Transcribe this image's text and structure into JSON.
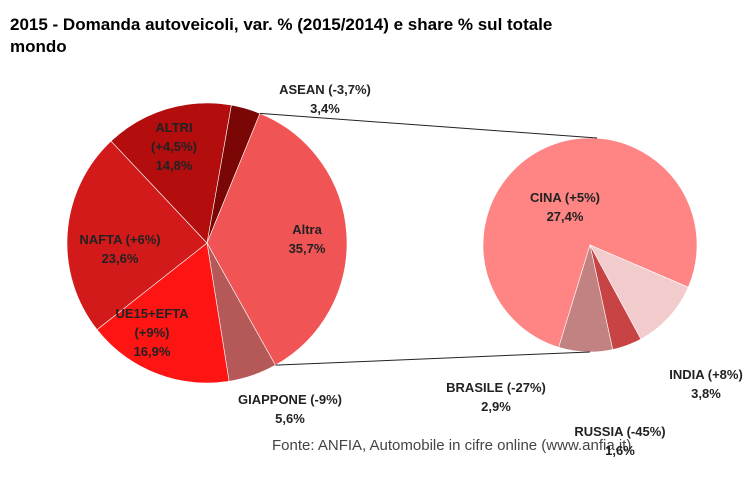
{
  "chart_data": {
    "type": "pie-of-pie",
    "title": "2015 - Domanda autoveicoli, var. % (2015/2014) e share % sul totale mondo",
    "source": "Fonte: ANFIA, Automobile in cifre online (www.anfia.it)",
    "pies": [
      {
        "categories": [
          "ASEAN (-3,7%)",
          "Altra",
          "GIAPPONE (-9%)",
          "UE15+EFTA (+9%)",
          "NAFTA (+6%)",
          "ALTRI (+4,5%)"
        ],
        "values": [
          3.4,
          35.7,
          5.6,
          16.9,
          23.6,
          14.8
        ],
        "value_labels": [
          "3,4%",
          "35,7%",
          "5,6%",
          "16,9%",
          "23,6%",
          "14,8%"
        ],
        "colors": [
          "#7a0606",
          "#f05454",
          "#b45858",
          "#ff1414",
          "#d21a1a",
          "#b30d0d"
        ]
      },
      {
        "categories": [
          "CINA (+5%)",
          "INDIA (+8%)",
          "RUSSIA (-45%)",
          "BRASILE (-27%)"
        ],
        "values": [
          27.4,
          3.8,
          1.6,
          2.9
        ],
        "value_labels": [
          "27,4%",
          "3,8%",
          "1,6%",
          "2,9%"
        ],
        "colors": [
          "#ff8484",
          "#f2cccc",
          "#c84444",
          "#c28282"
        ]
      }
    ]
  }
}
